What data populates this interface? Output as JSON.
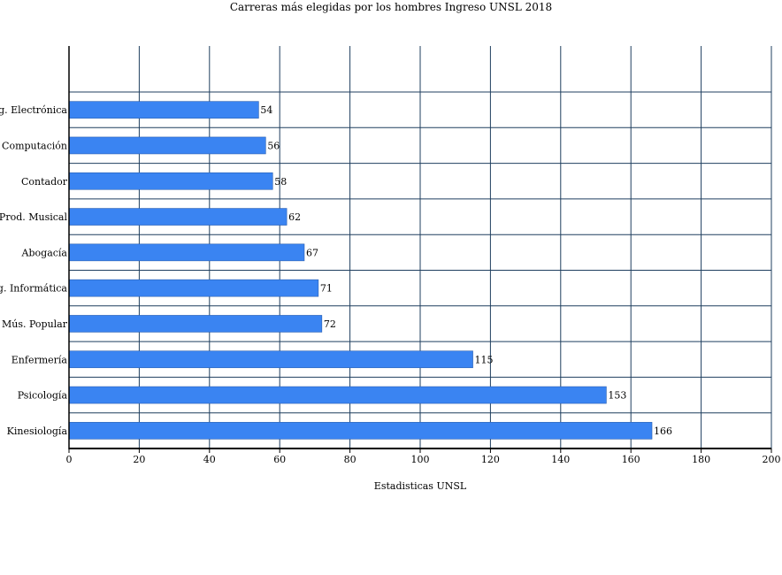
{
  "chart_data": {
    "type": "bar",
    "orientation": "horizontal",
    "title": "Carreras más elegidas por los hombres Ingreso UNSL 2018",
    "xlabel": "Estadisticas UNSL",
    "ylabel": "",
    "categories": [
      "Ing. Electrónica",
      "Cs. Computación",
      "Contador",
      "Prod. Musical",
      "Abogacía",
      "Ing. Informática",
      "Mús. Popular",
      "Enfermería",
      "Psicología",
      "Kinesiología"
    ],
    "values": [
      54,
      56,
      58,
      62,
      67,
      71,
      72,
      115,
      153,
      166
    ],
    "xlim": [
      0,
      200
    ],
    "xticks": [
      0,
      20,
      40,
      60,
      80,
      100,
      120,
      140,
      160,
      180,
      200
    ],
    "grid": true,
    "bar_color": "#3a84f2",
    "grid_color": "#1f3f5f"
  }
}
